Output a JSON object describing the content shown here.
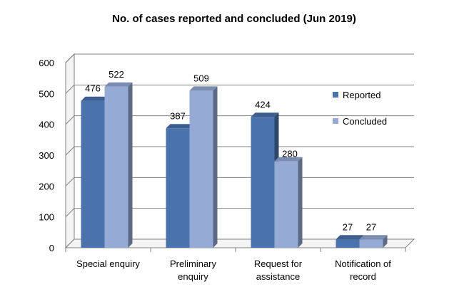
{
  "chart_data": {
    "type": "bar",
    "title": "No. of cases reported and concluded (Jun 2019)",
    "categories": [
      [
        "Special enquiry"
      ],
      [
        "Preliminary",
        "enquiry"
      ],
      [
        "Request for",
        "assistance"
      ],
      [
        "Notification of",
        "record"
      ]
    ],
    "series": [
      {
        "name": "Reported",
        "values": [
          476,
          387,
          424,
          27
        ],
        "color": "#4a73ad"
      },
      {
        "name": "Concluded",
        "values": [
          522,
          509,
          280,
          27
        ],
        "color": "#95abd6"
      }
    ],
    "ylim": [
      0,
      600
    ],
    "yticks": [
      0,
      100,
      200,
      300,
      400,
      500,
      600
    ],
    "grid": true,
    "legend_position": "right"
  }
}
